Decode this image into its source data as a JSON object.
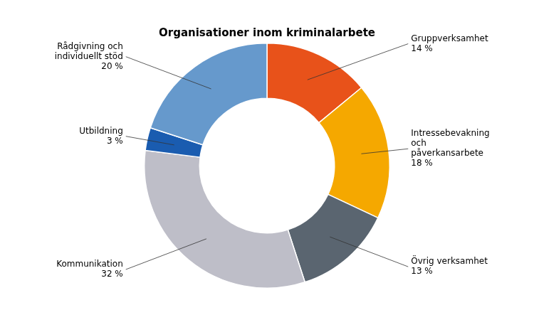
{
  "chart_data": {
    "type": "doughnut",
    "title": "Organisationer inom kriminalarbete",
    "categories": [
      "Gruppverksamhet\n14 %",
      "Intressebevakning\noch\npåverkansarbete\n18 %",
      "Övrig verksamhet\n13 %",
      "Kommunikation\n32 %",
      "Utbildning\n3 %",
      "Rådgivning och\nindividuellt stöd\n20 %"
    ],
    "values": [
      14,
      18,
      13,
      32,
      3,
      20
    ],
    "colors": [
      "#E8521A",
      "#F5A800",
      "#5A6570",
      "#BEBEC8",
      "#1A5CB0",
      "#6699CC"
    ]
  }
}
